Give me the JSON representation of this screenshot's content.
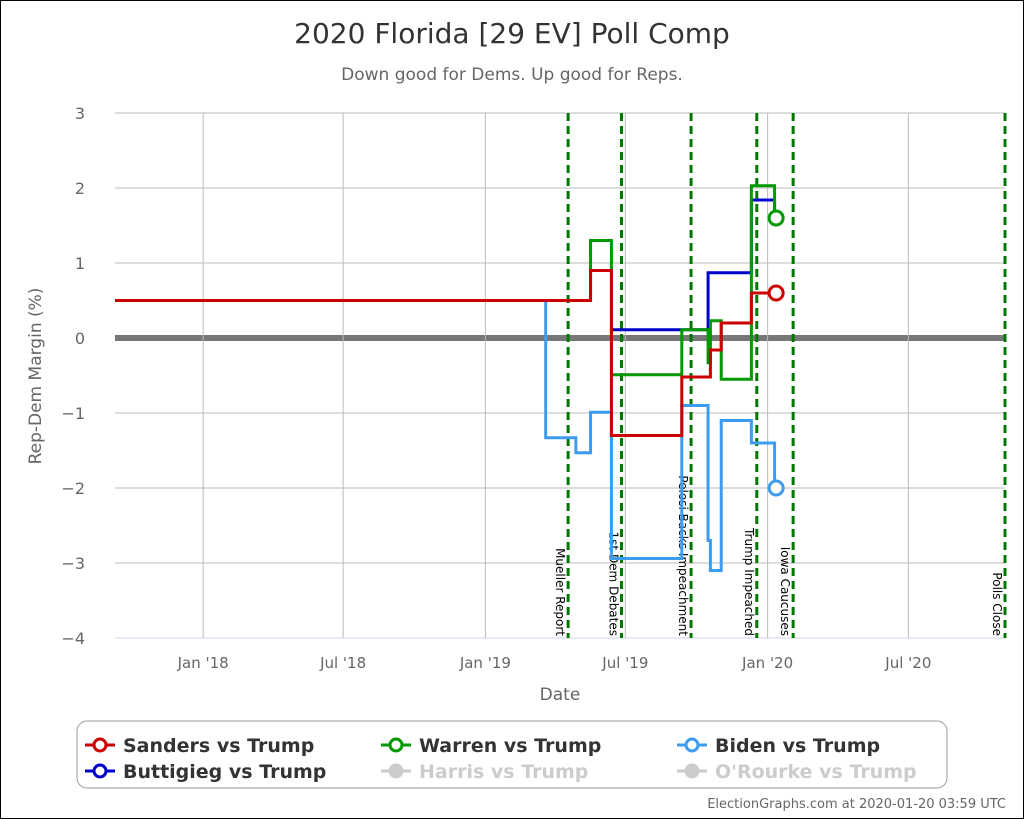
{
  "chart_data": {
    "type": "line",
    "step": true,
    "title": "2020 Florida [29 EV] Poll Comp",
    "subtitle": "Down good for Dems. Up good for Reps.",
    "xlabel": "Date",
    "ylabel": "Rep-Dem Margin (%)",
    "xlim": [
      "2017-09-09",
      "2020-11-03"
    ],
    "ylim": [
      -4,
      3
    ],
    "yticks": [
      3,
      2,
      1,
      0,
      -1,
      -2,
      -3,
      -4
    ],
    "xticks": [
      {
        "date": "2018-01-01",
        "label": "Jan '18"
      },
      {
        "date": "2018-07-01",
        "label": "Jul '18"
      },
      {
        "date": "2019-01-01",
        "label": "Jan '19"
      },
      {
        "date": "2019-07-01",
        "label": "Jul '19"
      },
      {
        "date": "2020-01-01",
        "label": "Jan '20"
      },
      {
        "date": "2020-07-01",
        "label": "Jul '20"
      }
    ],
    "grid": true,
    "legend_placement": "bottom",
    "events": [
      {
        "date": "2019-04-18",
        "label": "Mueller Report"
      },
      {
        "date": "2019-06-26",
        "label": "1st Dem Debates"
      },
      {
        "date": "2019-09-24",
        "label": "Pelosi Backs Impeachment"
      },
      {
        "date": "2019-12-18",
        "label": "Trump Impeached"
      },
      {
        "date": "2020-02-03",
        "label": "Iowa Caucuses"
      },
      {
        "date": "2020-11-03",
        "label": "Polls Close"
      }
    ],
    "series": [
      {
        "name": "Sanders vs Trump",
        "color": "#cc0000",
        "active": true,
        "points": [
          [
            "2017-09-09",
            0.5
          ],
          [
            "2019-05-17",
            0.9
          ],
          [
            "2019-06-13",
            -1.3
          ],
          [
            "2019-09-12",
            -0.52
          ],
          [
            "2019-10-19",
            -0.16
          ],
          [
            "2019-11-02",
            0.2
          ],
          [
            "2019-12-11",
            0.6
          ],
          [
            "2020-01-12",
            0.6
          ]
        ]
      },
      {
        "name": "Warren vs Trump",
        "color": "#009900",
        "active": true,
        "points": [
          [
            "2017-09-09",
            0.5
          ],
          [
            "2019-05-17",
            1.3
          ],
          [
            "2019-06-13",
            -0.49
          ],
          [
            "2019-09-12",
            0.11
          ],
          [
            "2019-10-16",
            -0.33
          ],
          [
            "2019-10-19",
            0.23
          ],
          [
            "2019-11-02",
            -0.55
          ],
          [
            "2019-12-11",
            2.03
          ],
          [
            "2020-01-10",
            1.6
          ],
          [
            "2020-01-12",
            1.6
          ]
        ]
      },
      {
        "name": "Biden vs Trump",
        "color": "#3d9cf0",
        "active": true,
        "points": [
          [
            "2017-09-09",
            0.5
          ],
          [
            "2019-03-20",
            -1.33
          ],
          [
            "2019-04-28",
            -1.53
          ],
          [
            "2019-05-17",
            -0.99
          ],
          [
            "2019-06-13",
            -2.94
          ],
          [
            "2019-09-12",
            -0.9
          ],
          [
            "2019-10-16",
            -2.7
          ],
          [
            "2019-10-19",
            -3.1
          ],
          [
            "2019-11-02",
            -1.1
          ],
          [
            "2019-12-11",
            -1.4
          ],
          [
            "2020-01-10",
            -2.0
          ],
          [
            "2020-01-12",
            -2.0
          ]
        ]
      },
      {
        "name": "Buttigieg vs Trump",
        "color": "#0000cc",
        "active": true,
        "points": [
          [
            "2019-06-13",
            0.11
          ],
          [
            "2019-10-16",
            0.87
          ],
          [
            "2019-12-11",
            1.84
          ],
          [
            "2020-01-10",
            1.6
          ],
          [
            "2020-01-12",
            1.6
          ]
        ]
      },
      {
        "name": "Harris vs Trump",
        "color": "#cccccc",
        "active": false,
        "points": []
      },
      {
        "name": "O'Rourke vs Trump",
        "color": "#cccccc",
        "active": false,
        "points": []
      }
    ]
  },
  "legend_order": [
    0,
    1,
    2,
    3,
    4,
    5
  ],
  "credit": "ElectionGraphs.com at 2020-01-20 03:59 UTC",
  "colors": {
    "event_line": "#007700",
    "grid": "#bbbbbb",
    "zero_line": "#777777"
  }
}
